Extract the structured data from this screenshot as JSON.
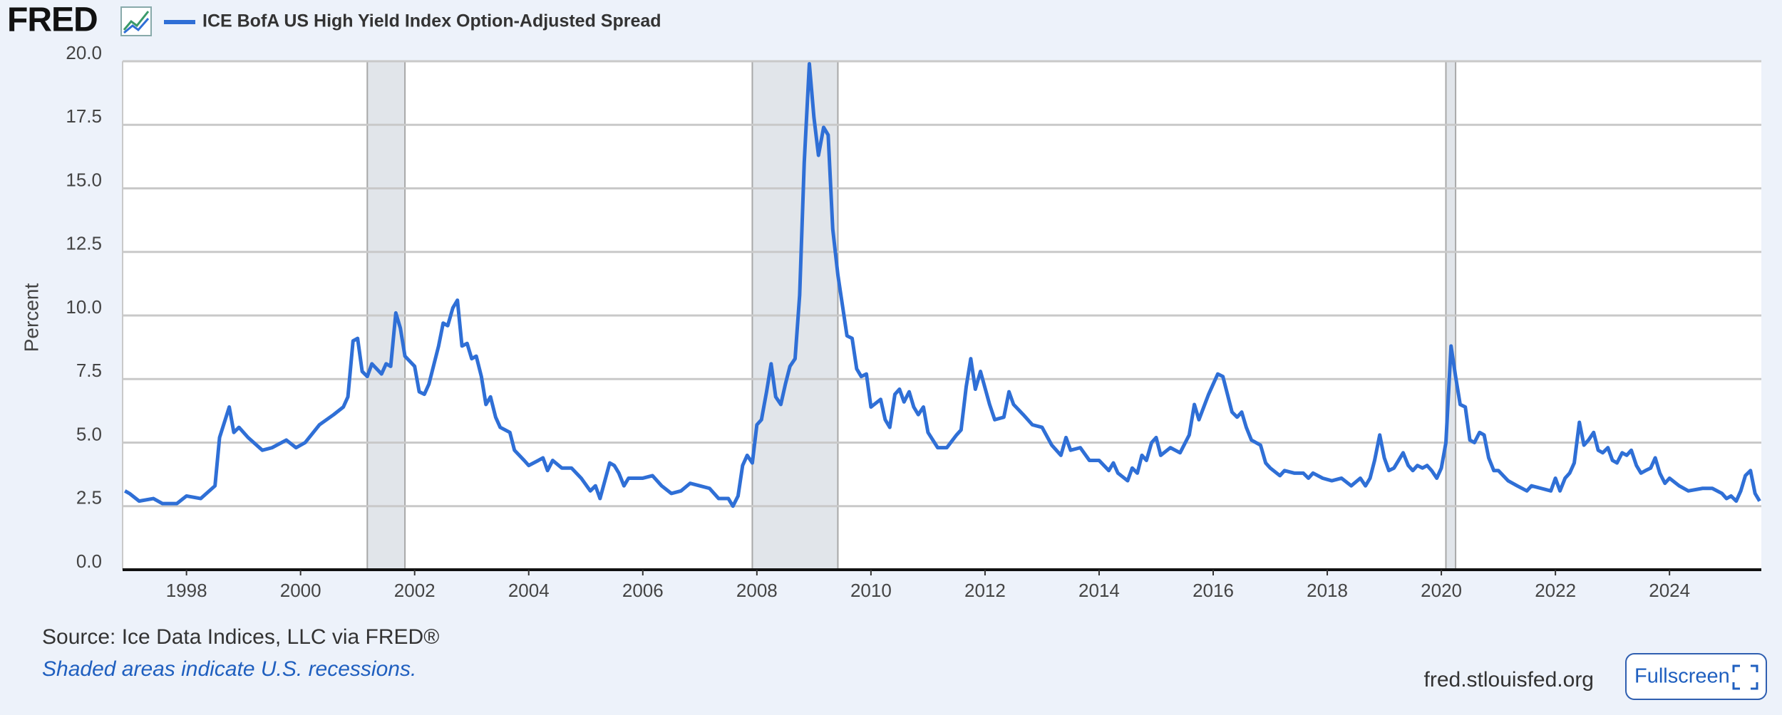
{
  "logo": "FRED",
  "chart_data": {
    "type": "line",
    "ylabel": "Percent",
    "x": [
      1996.92,
      1997.0,
      1997.17,
      1997.42,
      1997.58,
      1997.83,
      1998.0,
      1998.25,
      1998.5,
      1998.58,
      1998.75,
      1998.83,
      1998.92,
      1999.08,
      1999.33,
      1999.5,
      1999.75,
      1999.92,
      2000.08,
      2000.33,
      2000.58,
      2000.75,
      2000.83,
      2000.92,
      2001.0,
      2001.08,
      2001.17,
      2001.25,
      2001.42,
      2001.5,
      2001.58,
      2001.67,
      2001.75,
      2001.83,
      2002.0,
      2002.08,
      2002.17,
      2002.25,
      2002.42,
      2002.5,
      2002.58,
      2002.67,
      2002.75,
      2002.83,
      2002.92,
      2003.0,
      2003.08,
      2003.17,
      2003.25,
      2003.33,
      2003.42,
      2003.5,
      2003.67,
      2003.75,
      2003.92,
      2004.0,
      2004.17,
      2004.25,
      2004.33,
      2004.42,
      2004.58,
      2004.75,
      2004.92,
      2005.08,
      2005.17,
      2005.25,
      2005.42,
      2005.5,
      2005.58,
      2005.67,
      2005.75,
      2006.0,
      2006.17,
      2006.33,
      2006.5,
      2006.67,
      2006.83,
      2007.0,
      2007.17,
      2007.33,
      2007.5,
      2007.58,
      2007.67,
      2007.75,
      2007.83,
      2007.92,
      2008.0,
      2008.08,
      2008.17,
      2008.25,
      2008.33,
      2008.42,
      2008.5,
      2008.58,
      2008.67,
      2008.75,
      2008.83,
      2008.92,
      2009.0,
      2009.08,
      2009.17,
      2009.25,
      2009.33,
      2009.42,
      2009.5,
      2009.58,
      2009.67,
      2009.75,
      2009.83,
      2009.92,
      2010.0,
      2010.17,
      2010.25,
      2010.33,
      2010.42,
      2010.5,
      2010.58,
      2010.67,
      2010.75,
      2010.83,
      2010.92,
      2011.0,
      2011.17,
      2011.33,
      2011.5,
      2011.58,
      2011.67,
      2011.75,
      2011.83,
      2011.92,
      2012.08,
      2012.17,
      2012.33,
      2012.42,
      2012.5,
      2012.67,
      2012.83,
      2013.0,
      2013.17,
      2013.33,
      2013.42,
      2013.5,
      2013.67,
      2013.83,
      2014.0,
      2014.17,
      2014.25,
      2014.33,
      2014.5,
      2014.58,
      2014.67,
      2014.75,
      2014.83,
      2014.92,
      2015.0,
      2015.08,
      2015.25,
      2015.42,
      2015.58,
      2015.67,
      2015.75,
      2015.92,
      2016.08,
      2016.17,
      2016.25,
      2016.33,
      2016.42,
      2016.5,
      2016.58,
      2016.67,
      2016.83,
      2016.92,
      2017.0,
      2017.17,
      2017.25,
      2017.42,
      2017.58,
      2017.67,
      2017.75,
      2017.92,
      2018.08,
      2018.25,
      2018.42,
      2018.58,
      2018.67,
      2018.75,
      2018.83,
      2018.92,
      2019.0,
      2019.08,
      2019.17,
      2019.33,
      2019.42,
      2019.5,
      2019.58,
      2019.67,
      2019.75,
      2019.83,
      2019.92,
      2020.0,
      2020.08,
      2020.17,
      2020.25,
      2020.33,
      2020.42,
      2020.5,
      2020.58,
      2020.67,
      2020.75,
      2020.83,
      2020.92,
      2021.0,
      2021.17,
      2021.33,
      2021.5,
      2021.58,
      2021.75,
      2021.92,
      2022.0,
      2022.08,
      2022.17,
      2022.25,
      2022.33,
      2022.42,
      2022.5,
      2022.58,
      2022.67,
      2022.75,
      2022.83,
      2022.92,
      2023.0,
      2023.08,
      2023.17,
      2023.25,
      2023.33,
      2023.42,
      2023.5,
      2023.58,
      2023.67,
      2023.75,
      2023.83,
      2023.92,
      2024.0,
      2024.17,
      2024.33,
      2024.58,
      2024.75,
      2024.92,
      2025.0,
      2025.08,
      2025.17,
      2025.25,
      2025.33,
      2025.42,
      2025.5,
      2025.58
    ],
    "series": [
      {
        "name": "ICE BofA US High Yield Index Option-Adjusted Spread",
        "color": "#2f6fd6",
        "values": [
          3.1,
          3.0,
          2.7,
          2.8,
          2.6,
          2.6,
          2.9,
          2.8,
          3.3,
          5.2,
          6.4,
          5.4,
          5.6,
          5.2,
          4.7,
          4.8,
          5.1,
          4.8,
          5.0,
          5.7,
          6.1,
          6.4,
          6.8,
          9.0,
          9.1,
          7.8,
          7.6,
          8.1,
          7.7,
          8.1,
          8.0,
          10.1,
          9.5,
          8.4,
          8.0,
          7.0,
          6.9,
          7.3,
          8.8,
          9.7,
          9.6,
          10.3,
          10.6,
          8.8,
          8.9,
          8.3,
          8.4,
          7.6,
          6.5,
          6.8,
          6.0,
          5.6,
          5.4,
          4.7,
          4.3,
          4.1,
          4.3,
          4.4,
          3.9,
          4.3,
          4.0,
          4.0,
          3.6,
          3.1,
          3.3,
          2.8,
          4.2,
          4.1,
          3.8,
          3.3,
          3.6,
          3.6,
          3.7,
          3.3,
          3.0,
          3.1,
          3.4,
          3.3,
          3.2,
          2.8,
          2.8,
          2.5,
          2.9,
          4.1,
          4.5,
          4.2,
          5.7,
          5.9,
          7.0,
          8.1,
          6.8,
          6.5,
          7.3,
          8.0,
          8.3,
          10.8,
          16.0,
          19.9,
          17.8,
          16.3,
          17.4,
          17.1,
          13.4,
          11.6,
          10.4,
          9.2,
          9.1,
          7.9,
          7.6,
          7.7,
          6.4,
          6.7,
          5.9,
          5.6,
          6.9,
          7.1,
          6.6,
          7.0,
          6.4,
          6.1,
          6.4,
          5.4,
          4.8,
          4.8,
          5.3,
          5.5,
          7.2,
          8.3,
          7.1,
          7.8,
          6.5,
          5.9,
          6.0,
          7.0,
          6.5,
          6.1,
          5.7,
          5.6,
          4.9,
          4.5,
          5.2,
          4.7,
          4.8,
          4.3,
          4.3,
          3.9,
          4.2,
          3.8,
          3.5,
          4.0,
          3.8,
          4.5,
          4.3,
          5.0,
          5.2,
          4.5,
          4.8,
          4.6,
          5.3,
          6.5,
          5.9,
          6.9,
          7.7,
          7.6,
          6.9,
          6.2,
          6.0,
          6.2,
          5.6,
          5.1,
          4.9,
          4.2,
          4.0,
          3.7,
          3.9,
          3.8,
          3.8,
          3.6,
          3.8,
          3.6,
          3.5,
          3.6,
          3.3,
          3.6,
          3.3,
          3.6,
          4.3,
          5.3,
          4.4,
          3.9,
          4.0,
          4.6,
          4.1,
          3.9,
          4.1,
          4.0,
          4.1,
          3.9,
          3.6,
          4.0,
          5.0,
          8.8,
          7.6,
          6.5,
          6.4,
          5.1,
          5.0,
          5.4,
          5.3,
          4.4,
          3.9,
          3.9,
          3.5,
          3.3,
          3.1,
          3.3,
          3.2,
          3.1,
          3.6,
          3.1,
          3.6,
          3.8,
          4.2,
          5.8,
          4.9,
          5.1,
          5.4,
          4.7,
          4.6,
          4.8,
          4.3,
          4.2,
          4.6,
          4.5,
          4.7,
          4.1,
          3.8,
          3.9,
          4.0,
          4.4,
          3.8,
          3.4,
          3.6,
          3.3,
          3.1,
          3.2,
          3.2,
          3.0,
          2.8,
          2.9,
          2.7,
          3.1,
          3.7,
          3.9,
          3.0,
          2.7
        ]
      }
    ],
    "recessions": [
      [
        2001.17,
        2001.83
      ],
      [
        2007.92,
        2009.42
      ],
      [
        2020.08,
        2020.25
      ]
    ],
    "xlim": [
      1996.88,
      2025.61
    ],
    "xticks": [
      1998,
      2000,
      2002,
      2004,
      2006,
      2008,
      2010,
      2012,
      2014,
      2016,
      2018,
      2020,
      2022,
      2024
    ],
    "ylim": [
      0,
      20
    ],
    "yticks": [
      {
        "value": 0,
        "label": "0.0"
      },
      {
        "value": 2.5,
        "label": "2.5"
      },
      {
        "value": 5,
        "label": "5.0"
      },
      {
        "value": 7.5,
        "label": "7.5"
      },
      {
        "value": 10,
        "label": "10.0"
      },
      {
        "value": 12.5,
        "label": "12.5"
      },
      {
        "value": 15,
        "label": "15.0"
      },
      {
        "value": 17.5,
        "label": "17.5"
      },
      {
        "value": 20,
        "label": "20.0"
      }
    ],
    "grid": true
  },
  "footer": {
    "source": "Source: Ice Data Indices, LLC via FRED®",
    "note": "Shaded areas indicate U.S. recessions.",
    "site": "fred.stlouisfed.org",
    "button": "Fullscreen"
  }
}
